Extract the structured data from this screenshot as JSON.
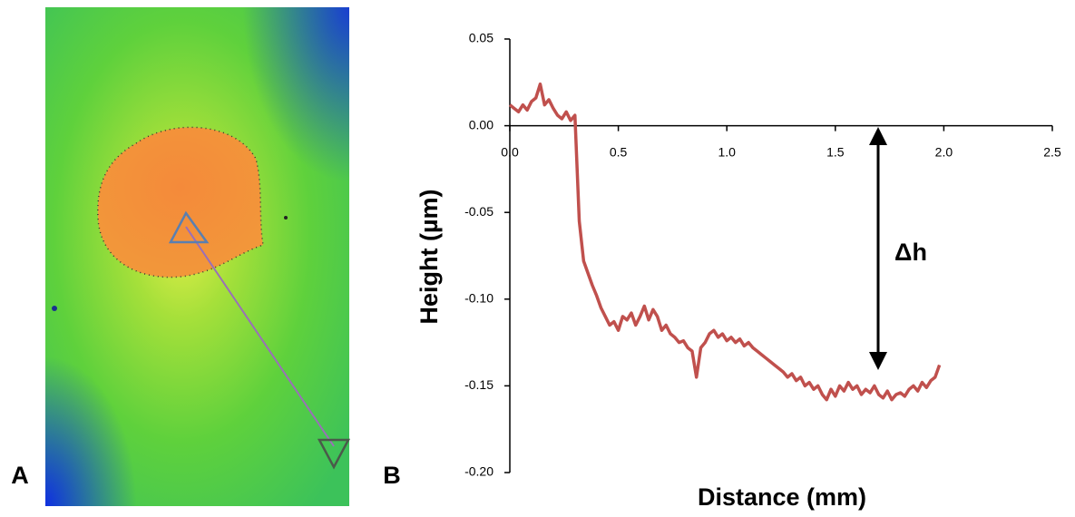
{
  "panel_labels": [
    "A",
    "B"
  ],
  "chart_data": {
    "type": "line",
    "xlabel": "Distance (mm)",
    "ylabel": "Height (µm)",
    "annotation": "Δh",
    "color": "#c0504d",
    "grid": false,
    "xlim": [
      0,
      2.5
    ],
    "ylim": [
      -0.2,
      0.05
    ],
    "xticks": [
      {
        "value": 0,
        "label": "0.0"
      },
      {
        "value": 0.5,
        "label": "0.5"
      },
      {
        "value": 1,
        "label": "1.0"
      },
      {
        "value": 1.5,
        "label": "1.5"
      },
      {
        "value": 2,
        "label": "2.0"
      },
      {
        "value": 2.5,
        "label": "2.5"
      }
    ],
    "yticks": [
      {
        "value": 0.05,
        "label": "0.05"
      },
      {
        "value": 0,
        "label": "0.00"
      },
      {
        "value": -0.05,
        "label": "-0.05"
      },
      {
        "value": -0.1,
        "label": "-0.10"
      },
      {
        "value": -0.15,
        "label": "-0.15"
      },
      {
        "value": -0.2,
        "label": "-0.20"
      }
    ],
    "x": [
      0,
      0.02,
      0.04,
      0.06,
      0.08,
      0.1,
      0.12,
      0.14,
      0.16,
      0.18,
      0.2,
      0.22,
      0.24,
      0.26,
      0.28,
      0.3,
      0.32,
      0.34,
      0.36,
      0.38,
      0.4,
      0.42,
      0.44,
      0.46,
      0.48,
      0.5,
      0.52,
      0.54,
      0.56,
      0.58,
      0.6,
      0.62,
      0.64,
      0.66,
      0.68,
      0.7,
      0.72,
      0.74,
      0.76,
      0.78,
      0.8,
      0.82,
      0.84,
      0.86,
      0.88,
      0.9,
      0.92,
      0.94,
      0.96,
      0.98,
      1,
      1.02,
      1.04,
      1.06,
      1.08,
      1.1,
      1.12,
      1.14,
      1.16,
      1.18,
      1.2,
      1.22,
      1.24,
      1.26,
      1.28,
      1.3,
      1.32,
      1.34,
      1.36,
      1.38,
      1.4,
      1.42,
      1.44,
      1.46,
      1.48,
      1.5,
      1.52,
      1.54,
      1.56,
      1.58,
      1.6,
      1.62,
      1.64,
      1.66,
      1.68,
      1.7,
      1.72,
      1.74,
      1.76,
      1.78,
      1.8,
      1.82,
      1.84,
      1.86,
      1.88,
      1.9,
      1.92,
      1.94,
      1.96,
      1.98
    ],
    "values": [
      0.012,
      0.01,
      0.008,
      0.012,
      0.009,
      0.014,
      0.016,
      0.024,
      0.012,
      0.015,
      0.01,
      0.006,
      0.004,
      0.008,
      0.003,
      0.006,
      -0.055,
      -0.078,
      -0.085,
      -0.092,
      -0.098,
      -0.105,
      -0.11,
      -0.115,
      -0.113,
      -0.118,
      -0.11,
      -0.112,
      -0.108,
      -0.115,
      -0.11,
      -0.104,
      -0.112,
      -0.106,
      -0.11,
      -0.118,
      -0.115,
      -0.12,
      -0.122,
      -0.125,
      -0.124,
      -0.128,
      -0.13,
      -0.145,
      -0.128,
      -0.125,
      -0.12,
      -0.118,
      -0.122,
      -0.12,
      -0.124,
      -0.122,
      -0.125,
      -0.123,
      -0.127,
      -0.125,
      -0.128,
      -0.13,
      -0.132,
      -0.134,
      -0.136,
      -0.138,
      -0.14,
      -0.142,
      -0.145,
      -0.143,
      -0.147,
      -0.145,
      -0.15,
      -0.148,
      -0.152,
      -0.15,
      -0.155,
      -0.158,
      -0.152,
      -0.156,
      -0.15,
      -0.153,
      -0.148,
      -0.152,
      -0.15,
      -0.155,
      -0.152,
      -0.154,
      -0.15,
      -0.155,
      -0.157,
      -0.153,
      -0.158,
      -0.155,
      -0.154,
      -0.156,
      -0.152,
      -0.15,
      -0.153,
      -0.148,
      -0.151,
      -0.147,
      -0.145,
      -0.138
    ]
  }
}
